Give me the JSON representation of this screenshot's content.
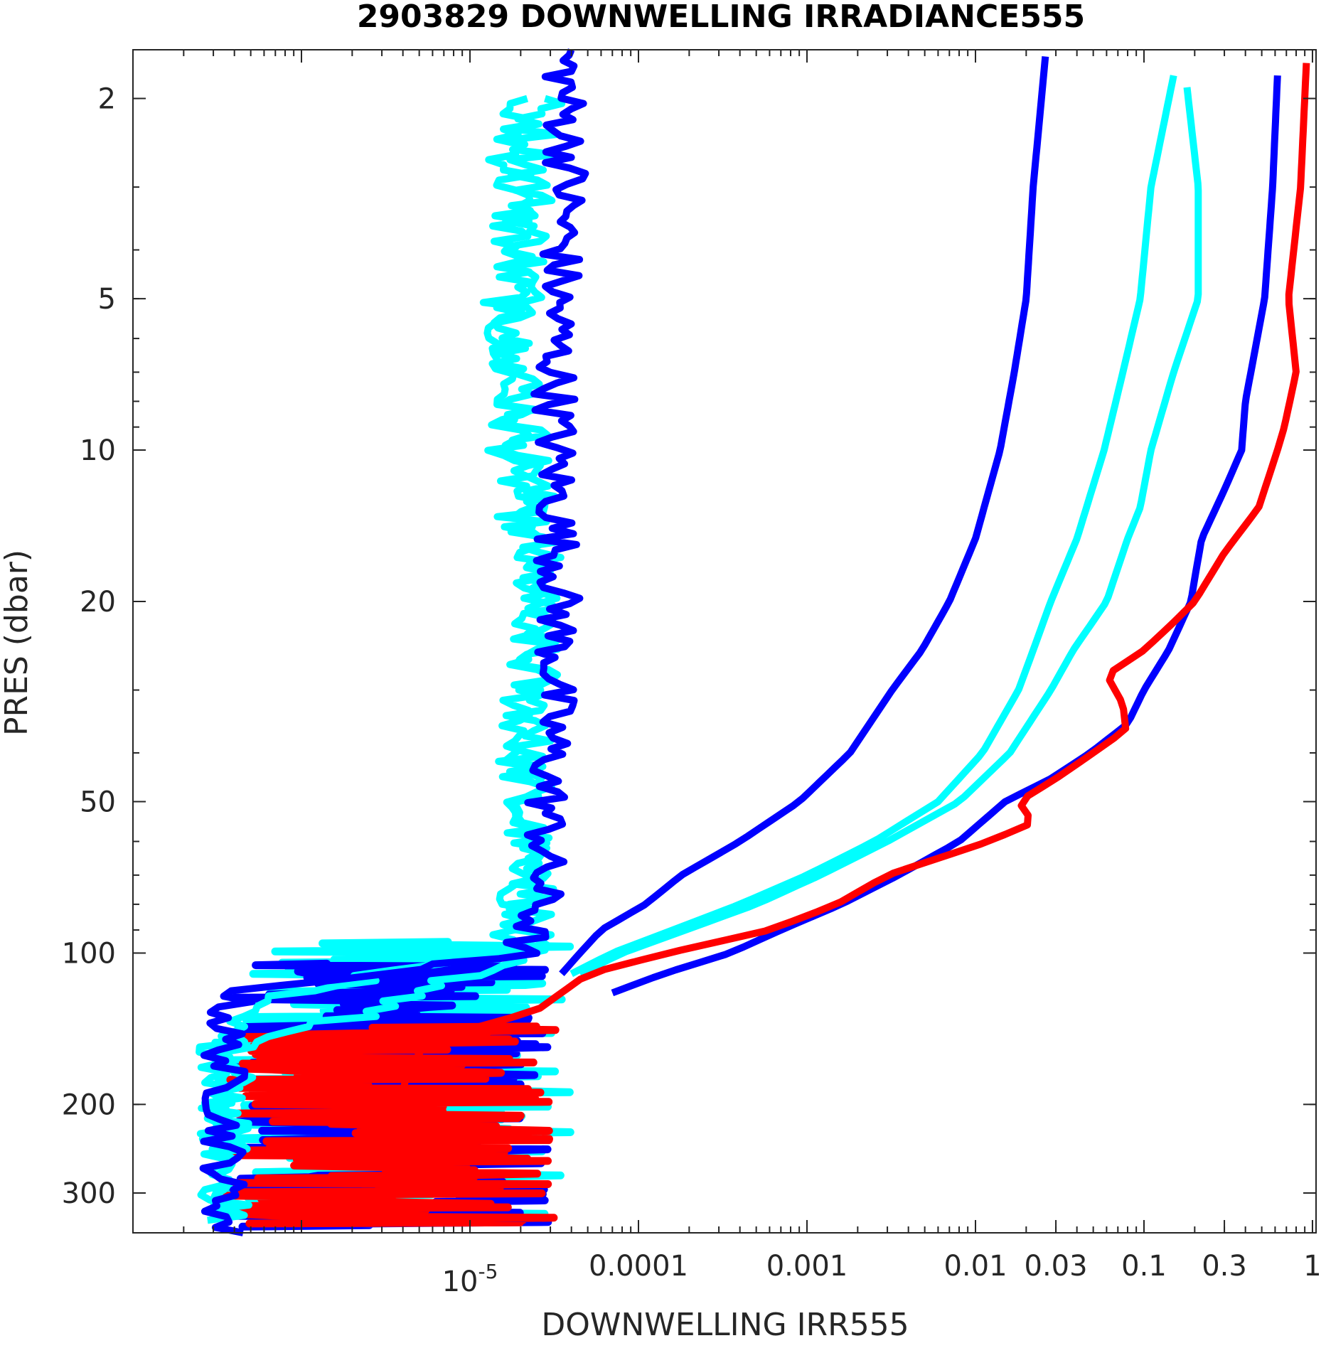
{
  "chart_data": {
    "type": "line",
    "title": "2903829  DOWNWELLING IRRADIANCE555",
    "xlabel": "DOWNWELLING IRR555",
    "ylabel": "PRES (dbar)",
    "x_scale": "log",
    "y_scale": "log",
    "y_reversed": true,
    "xlim": [
      1e-07,
      1.05
    ],
    "ylim": [
      1.6,
      360
    ],
    "grid": false,
    "x_ticks": [
      {
        "value": 1e-05,
        "label": "10",
        "sup": "-5"
      },
      {
        "value": 0.0001,
        "label": "0.0001"
      },
      {
        "value": 0.001,
        "label": "0.001"
      },
      {
        "value": 0.01,
        "label": "0.01"
      },
      {
        "value": 0.03,
        "label": "0.03"
      },
      {
        "value": 0.1,
        "label": "0.1"
      },
      {
        "value": 0.3,
        "label": "0.3"
      },
      {
        "value": 1,
        "label": "1"
      }
    ],
    "y_ticks": [
      {
        "value": 2,
        "label": "2"
      },
      {
        "value": 5,
        "label": "5"
      },
      {
        "value": 10,
        "label": "10"
      },
      {
        "value": 20,
        "label": "20"
      },
      {
        "value": 50,
        "label": "50"
      },
      {
        "value": 100,
        "label": "100"
      },
      {
        "value": 200,
        "label": "200"
      },
      {
        "value": 300,
        "label": "300"
      }
    ],
    "series": [
      {
        "color": "#00ffff",
        "jitter": 0.35,
        "points": [
          [
            2,
            1.8e-05
          ],
          [
            4,
            1.8e-05
          ],
          [
            6,
            1.6e-05
          ],
          [
            10,
            1.8e-05
          ],
          [
            20,
            2.4e-05
          ],
          [
            40,
            2e-05
          ],
          [
            60,
            2.2e-05
          ],
          [
            80,
            2e-05
          ],
          [
            100,
            1.4e-05
          ],
          [
            125,
            4.5e-07
          ],
          [
            140,
            3.5e-07
          ],
          [
            160,
            3.5e-07
          ],
          [
            200,
            3.5e-07
          ],
          [
            260,
            3.5e-07
          ],
          [
            320,
            3.5e-07
          ],
          [
            340,
            3.5e-07
          ]
        ]
      },
      {
        "color": "#00ffff",
        "jitter": 0.35,
        "points": [
          [
            2,
            2.6e-05
          ],
          [
            4,
            2.2e-05
          ],
          [
            6,
            1.9e-05
          ],
          [
            10,
            2.2e-05
          ],
          [
            20,
            2.6e-05
          ],
          [
            40,
            2.2e-05
          ],
          [
            60,
            2.4e-05
          ],
          [
            80,
            2.4e-05
          ],
          [
            100,
            2e-05
          ],
          [
            130,
            3e-06
          ],
          [
            150,
            4e-07
          ],
          [
            200,
            3.5e-07
          ],
          [
            280,
            3.5e-07
          ],
          [
            340,
            3.5e-07
          ]
        ]
      },
      {
        "color": "#00ffff",
        "jitter": 0,
        "points": [
          [
            1.9,
            0.18
          ],
          [
            3,
            0.21
          ],
          [
            5,
            0.21
          ],
          [
            7,
            0.15
          ],
          [
            10,
            0.11
          ],
          [
            13,
            0.095
          ],
          [
            15,
            0.08
          ],
          [
            20,
            0.06
          ],
          [
            25,
            0.038
          ],
          [
            30,
            0.028
          ],
          [
            40,
            0.016
          ],
          [
            50,
            0.008
          ],
          [
            60,
            0.003
          ],
          [
            70,
            0.0012
          ],
          [
            80,
            0.0005
          ],
          [
            90,
            0.00019
          ],
          [
            100,
            8e-05
          ],
          [
            110,
            4.5e-05
          ]
        ]
      },
      {
        "color": "#00ffff",
        "jitter": 0,
        "points": [
          [
            1.8,
            0.15
          ],
          [
            3,
            0.11
          ],
          [
            5,
            0.095
          ],
          [
            7,
            0.075
          ],
          [
            10,
            0.058
          ],
          [
            15,
            0.04
          ],
          [
            20,
            0.028
          ],
          [
            25,
            0.022
          ],
          [
            30,
            0.018
          ],
          [
            40,
            0.011
          ],
          [
            50,
            0.006
          ],
          [
            60,
            0.0025
          ],
          [
            70,
            0.001
          ],
          [
            80,
            0.0004
          ],
          [
            90,
            0.00016
          ],
          [
            100,
            7e-05
          ],
          [
            110,
            4e-05
          ]
        ]
      },
      {
        "color": "#0000ff",
        "jitter": 0.3,
        "points": [
          [
            1.6,
            3.6e-05
          ],
          [
            3,
            3.8e-05
          ],
          [
            5,
            3.3e-05
          ],
          [
            10,
            3.2e-05
          ],
          [
            20,
            3.4e-05
          ],
          [
            40,
            3e-05
          ],
          [
            60,
            2.8e-05
          ],
          [
            80,
            2.6e-05
          ],
          [
            100,
            2e-05
          ],
          [
            120,
            4e-07
          ],
          [
            140,
            3.5e-07
          ],
          [
            180,
            3.5e-07
          ],
          [
            240,
            3.5e-07
          ],
          [
            300,
            3.5e-07
          ],
          [
            360,
            3.5e-07
          ]
        ]
      },
      {
        "color": "#0000ff",
        "jitter": 0,
        "points": [
          [
            1.65,
            0.026
          ],
          [
            3,
            0.022
          ],
          [
            5,
            0.02
          ],
          [
            7,
            0.017
          ],
          [
            10,
            0.014
          ],
          [
            15,
            0.01
          ],
          [
            20,
            0.007
          ],
          [
            25,
            0.0048
          ],
          [
            30,
            0.0032
          ],
          [
            40,
            0.0018
          ],
          [
            50,
            0.0009
          ],
          [
            60,
            0.0004
          ],
          [
            70,
            0.00018
          ],
          [
            80,
            0.00011
          ],
          [
            90,
            6e-05
          ],
          [
            100,
            4.5e-05
          ],
          [
            110,
            3.5e-05
          ]
        ]
      },
      {
        "color": "#0000ff",
        "jitter": 0,
        "points": [
          [
            1.8,
            0.62
          ],
          [
            3,
            0.58
          ],
          [
            5,
            0.52
          ],
          [
            8,
            0.4
          ],
          [
            10,
            0.38
          ],
          [
            12,
            0.3
          ],
          [
            15,
            0.22
          ],
          [
            18,
            0.2
          ],
          [
            20,
            0.19
          ],
          [
            25,
            0.14
          ],
          [
            30,
            0.1
          ],
          [
            35,
            0.08
          ],
          [
            40,
            0.048
          ],
          [
            45,
            0.028
          ],
          [
            50,
            0.015
          ],
          [
            60,
            0.008
          ],
          [
            70,
            0.0035
          ],
          [
            80,
            0.0016
          ],
          [
            90,
            0.0007
          ],
          [
            100,
            0.00035
          ],
          [
            110,
            0.00014
          ],
          [
            120,
            7e-05
          ]
        ]
      },
      {
        "color": "#ff0000",
        "jitter": 0,
        "points": [
          [
            1.7,
            0.92
          ],
          [
            3,
            0.85
          ],
          [
            5,
            0.72
          ],
          [
            7,
            0.8
          ],
          [
            9,
            0.68
          ],
          [
            10,
            0.62
          ],
          [
            13,
            0.48
          ],
          [
            16,
            0.3
          ],
          [
            20,
            0.2
          ],
          [
            22,
            0.15
          ],
          [
            25,
            0.1
          ],
          [
            28,
            0.06
          ],
          [
            32,
            0.075
          ],
          [
            36,
            0.078
          ],
          [
            40,
            0.05
          ],
          [
            45,
            0.03
          ],
          [
            50,
            0.018
          ],
          [
            55,
            0.022
          ],
          [
            60,
            0.012
          ],
          [
            70,
            0.003
          ],
          [
            80,
            0.0015
          ],
          [
            90,
            0.0006
          ],
          [
            100,
            0.00015
          ],
          [
            110,
            5e-05
          ],
          [
            130,
            2.5e-05
          ],
          [
            150,
            5.5e-06
          ],
          [
            180,
            4e-06
          ],
          [
            220,
            5e-06
          ],
          [
            280,
            3e-06
          ],
          [
            340,
            4e-06
          ]
        ]
      }
    ],
    "noise_bands": [
      {
        "color": "#00ffff",
        "p_start": 95,
        "p_end": 330,
        "x_low": 3e-07,
        "x_high": 4e-05
      },
      {
        "color": "#0000ff",
        "p_start": 105,
        "p_end": 350,
        "x_low": 3.5e-07,
        "x_high": 3e-05
      },
      {
        "color": "#ff0000",
        "p_start": 140,
        "p_end": 345,
        "x_low": 3.5e-07,
        "x_high": 3.5e-05
      }
    ]
  }
}
